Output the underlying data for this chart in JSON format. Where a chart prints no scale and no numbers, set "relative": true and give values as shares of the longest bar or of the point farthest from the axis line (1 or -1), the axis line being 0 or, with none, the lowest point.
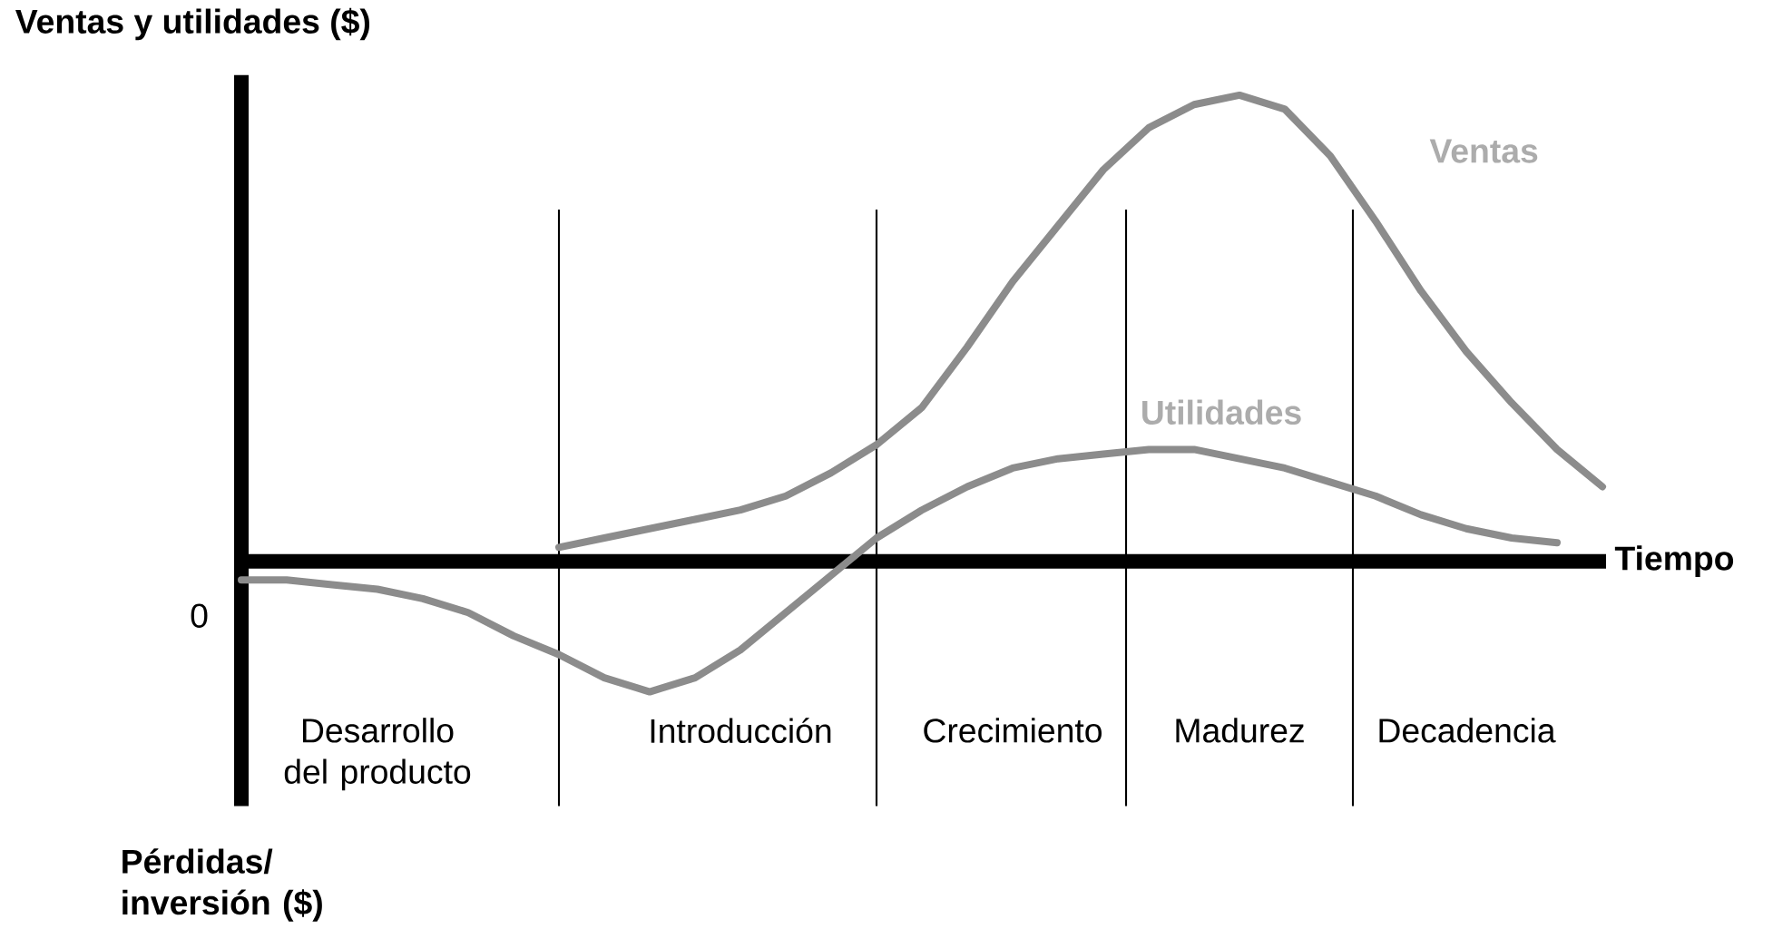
{
  "chart_data": {
    "type": "line",
    "relative": true,
    "ylabel": "Ventas y utilidades ($)",
    "xlabel": "Tiempo",
    "marker": "none",
    "categories": [
      null,
      null,
      null,
      "Desarrollo del producto",
      null,
      null,
      null,
      null,
      null,
      null,
      null,
      "Introducción",
      null,
      null,
      null,
      null,
      null,
      "Crecimiento",
      null,
      null,
      null,
      null,
      "Madurez",
      null,
      null,
      null,
      null,
      "Decadencia",
      null,
      null,
      null
    ],
    "series": [
      {
        "name": "Ventas",
        "color": "#8c8c8c",
        "values": [
          null,
          null,
          null,
          null,
          null,
          null,
          null,
          0.03,
          0.05,
          0.07,
          0.09,
          0.11,
          0.14,
          0.19,
          0.25,
          0.33,
          0.46,
          0.6,
          0.72,
          0.84,
          0.93,
          0.98,
          1.0,
          0.97,
          0.87,
          0.73,
          0.58,
          0.45,
          0.34,
          0.24,
          0.16
        ]
      },
      {
        "name": "Utilidades",
        "color": "#8c8c8c",
        "values": [
          -0.04,
          -0.04,
          -0.05,
          -0.06,
          -0.08,
          -0.11,
          -0.16,
          -0.2,
          -0.25,
          -0.28,
          -0.25,
          -0.19,
          -0.11,
          -0.03,
          0.05,
          0.11,
          0.16,
          0.2,
          0.22,
          0.23,
          0.24,
          0.24,
          0.22,
          0.2,
          0.17,
          0.14,
          0.1,
          0.07,
          0.05,
          0.04,
          null
        ]
      }
    ],
    "annotations": [
      "0",
      "Pérdidas/ inversión ($)"
    ]
  }
}
